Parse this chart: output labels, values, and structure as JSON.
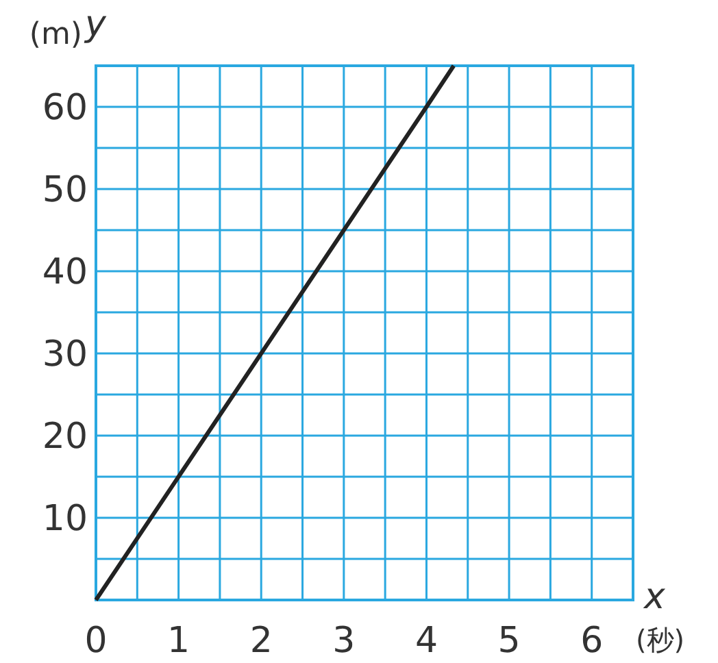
{
  "chart_data": {
    "type": "line",
    "xlabel": "x",
    "ylabel": "y",
    "annotations": [
      "(m)",
      "(秒)"
    ],
    "x": [
      0,
      1,
      2,
      3,
      4,
      4.33
    ],
    "series": [
      {
        "color": "#222222",
        "values": [
          0,
          15,
          30,
          45,
          60,
          65
        ]
      }
    ],
    "xlim": [
      0,
      6.5
    ],
    "ylim": [
      0,
      65
    ],
    "xticks": [
      0,
      {
        "value": 0.5,
        "label": null
      },
      1,
      {
        "value": 1.5,
        "label": null
      },
      2,
      {
        "value": 2.5,
        "label": null
      },
      3,
      {
        "value": 3.5,
        "label": null
      },
      4,
      {
        "value": 4.5,
        "label": null
      },
      5,
      {
        "value": 5.5,
        "label": null
      },
      6,
      {
        "value": 6.5,
        "label": null
      }
    ],
    "yticks": [
      {
        "value": 0,
        "label": null
      },
      {
        "value": 5,
        "label": null
      },
      10,
      {
        "value": 15,
        "label": null
      },
      20,
      {
        "value": 25,
        "label": null
      },
      30,
      {
        "value": 35,
        "label": null
      },
      40,
      {
        "value": 45,
        "label": null
      },
      50,
      {
        "value": 55,
        "label": null
      },
      60,
      {
        "value": 65,
        "label": null
      }
    ],
    "grid": true,
    "marker": "none",
    "line_style": "solid"
  }
}
